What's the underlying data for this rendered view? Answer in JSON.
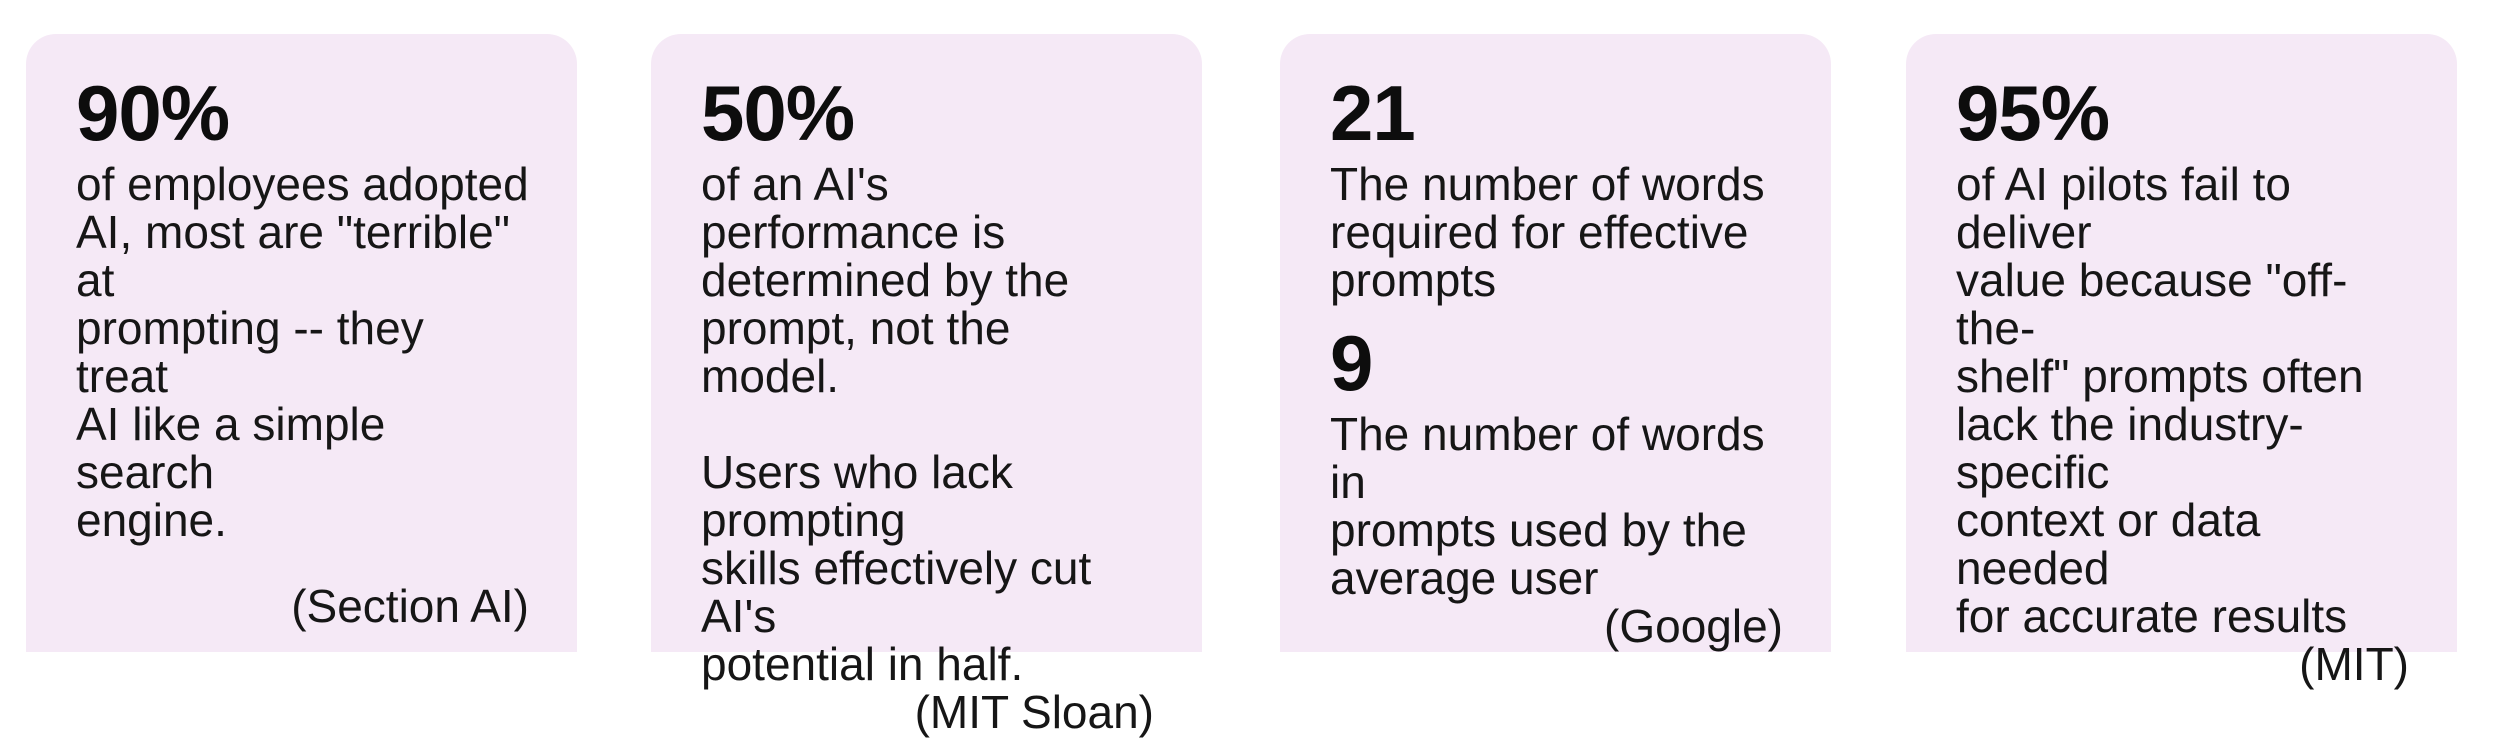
{
  "colors": {
    "page_background": "#ffffff",
    "card_background": "#f5e9f6",
    "text": "#161616",
    "headline_text": "#0d0d0d"
  },
  "cards": [
    {
      "headline": "90%",
      "body": "of employees adopted\nAI, most are \"terrible\" at\nprompting -- they  treat\nAI like a simple search\nengine.",
      "attribution": "(Section AI)"
    },
    {
      "headline": "50%",
      "body": "of an AI's performance is\ndetermined by the\nprompt, not the model.\n\nUsers who lack prompting\nskills effectively cut AI's\npotential in half.",
      "attribution": "(MIT Sloan)"
    },
    {
      "stats": [
        {
          "value": "21",
          "description": "The number of words\nrequired for effective\nprompts"
        },
        {
          "value": "9",
          "description": "The number of words in\nprompts used by the\naverage user"
        }
      ],
      "attribution": "(Google)"
    },
    {
      "headline": "95%",
      "body": "of AI pilots fail to deliver\nvalue because \"off-the-\nshelf\" prompts often\nlack the industry-specific\ncontext or data needed\nfor accurate results",
      "attribution": "(MIT)"
    }
  ]
}
